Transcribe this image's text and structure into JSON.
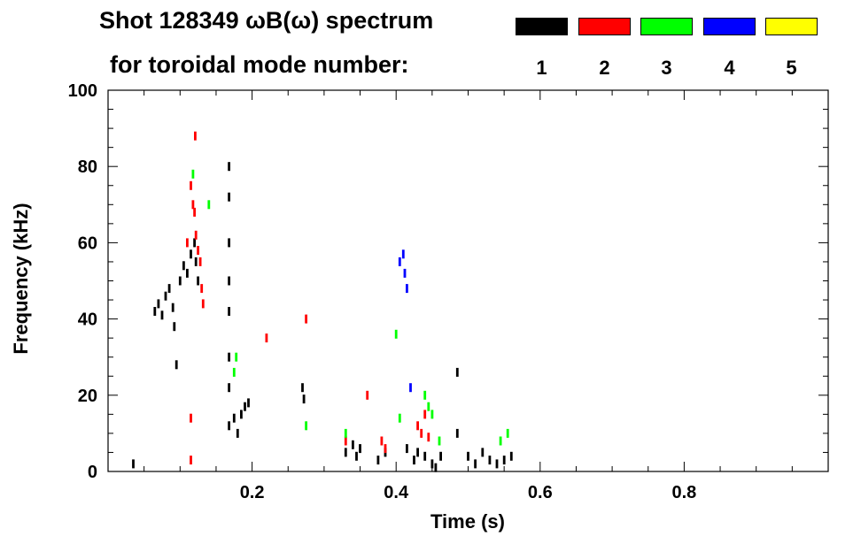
{
  "header": {
    "line1": "Shot 128349 ωB(ω) spectrum",
    "line2": "for toroidal mode number:"
  },
  "legend": [
    {
      "label": "1",
      "color": "#000000"
    },
    {
      "label": "2",
      "color": "#ff0000"
    },
    {
      "label": "3",
      "color": "#00ff00"
    },
    {
      "label": "4",
      "color": "#0000ff"
    },
    {
      "label": "5",
      "color": "#ffff00"
    }
  ],
  "chart_data": {
    "type": "scatter",
    "title": "Shot 128349 ωB(ω) spectrum",
    "xlabel": "Time (s)",
    "ylabel": "Frequency (kHz)",
    "xlim": [
      0.0,
      1.0
    ],
    "ylim": [
      0,
      100
    ],
    "xticks": [
      {
        "value": 0.2,
        "label": "0.2"
      },
      {
        "value": 0.4,
        "label": "0.4"
      },
      {
        "value": 0.6,
        "label": "0.6"
      },
      {
        "value": 0.8,
        "label": "0.8"
      }
    ],
    "yticks": [
      {
        "value": 0,
        "label": "0"
      },
      {
        "value": 20,
        "label": "20"
      },
      {
        "value": 40,
        "label": "40"
      },
      {
        "value": 60,
        "label": "60"
      },
      {
        "value": 80,
        "label": "80"
      },
      {
        "value": 100,
        "label": "100"
      }
    ],
    "series": [
      {
        "name": "1",
        "color": "#000000",
        "points": [
          [
            0.035,
            2
          ],
          [
            0.065,
            42
          ],
          [
            0.07,
            44
          ],
          [
            0.075,
            41
          ],
          [
            0.08,
            46
          ],
          [
            0.085,
            48
          ],
          [
            0.09,
            43
          ],
          [
            0.092,
            38
          ],
          [
            0.095,
            28
          ],
          [
            0.1,
            50
          ],
          [
            0.105,
            54
          ],
          [
            0.11,
            52
          ],
          [
            0.115,
            57
          ],
          [
            0.12,
            60
          ],
          [
            0.122,
            55
          ],
          [
            0.125,
            50
          ],
          [
            0.168,
            80
          ],
          [
            0.168,
            72
          ],
          [
            0.168,
            60
          ],
          [
            0.168,
            50
          ],
          [
            0.168,
            42
          ],
          [
            0.168,
            30
          ],
          [
            0.168,
            22
          ],
          [
            0.168,
            12
          ],
          [
            0.175,
            14
          ],
          [
            0.18,
            10
          ],
          [
            0.185,
            15
          ],
          [
            0.19,
            17
          ],
          [
            0.195,
            18
          ],
          [
            0.27,
            22
          ],
          [
            0.272,
            19
          ],
          [
            0.33,
            5
          ],
          [
            0.34,
            7
          ],
          [
            0.345,
            4
          ],
          [
            0.35,
            6
          ],
          [
            0.375,
            3
          ],
          [
            0.385,
            5
          ],
          [
            0.415,
            6
          ],
          [
            0.425,
            3
          ],
          [
            0.43,
            5
          ],
          [
            0.44,
            4
          ],
          [
            0.45,
            2
          ],
          [
            0.455,
            1
          ],
          [
            0.462,
            4
          ],
          [
            0.485,
            10
          ],
          [
            0.485,
            26
          ],
          [
            0.5,
            4
          ],
          [
            0.51,
            2
          ],
          [
            0.52,
            5
          ],
          [
            0.53,
            3
          ],
          [
            0.54,
            2
          ],
          [
            0.55,
            3
          ],
          [
            0.56,
            4
          ]
        ]
      },
      {
        "name": "2",
        "color": "#ff0000",
        "points": [
          [
            0.115,
            75
          ],
          [
            0.118,
            70
          ],
          [
            0.12,
            68
          ],
          [
            0.122,
            62
          ],
          [
            0.125,
            58
          ],
          [
            0.128,
            55
          ],
          [
            0.13,
            48
          ],
          [
            0.132,
            44
          ],
          [
            0.121,
            88
          ],
          [
            0.11,
            60
          ],
          [
            0.115,
            14
          ],
          [
            0.115,
            3
          ],
          [
            0.22,
            35
          ],
          [
            0.275,
            40
          ],
          [
            0.33,
            8
          ],
          [
            0.36,
            20
          ],
          [
            0.38,
            8
          ],
          [
            0.385,
            6
          ],
          [
            0.43,
            12
          ],
          [
            0.435,
            10
          ],
          [
            0.44,
            15
          ],
          [
            0.445,
            9
          ]
        ]
      },
      {
        "name": "3",
        "color": "#00ff00",
        "points": [
          [
            0.118,
            78
          ],
          [
            0.14,
            70
          ],
          [
            0.178,
            30
          ],
          [
            0.175,
            26
          ],
          [
            0.275,
            12
          ],
          [
            0.33,
            10
          ],
          [
            0.4,
            36
          ],
          [
            0.405,
            14
          ],
          [
            0.44,
            20
          ],
          [
            0.445,
            17
          ],
          [
            0.45,
            15
          ],
          [
            0.46,
            8
          ],
          [
            0.545,
            8
          ],
          [
            0.555,
            10
          ]
        ]
      },
      {
        "name": "4",
        "color": "#0000ff",
        "points": [
          [
            0.405,
            55
          ],
          [
            0.41,
            57
          ],
          [
            0.412,
            52
          ],
          [
            0.415,
            48
          ],
          [
            0.42,
            22
          ]
        ]
      },
      {
        "name": "5",
        "color": "#ffff00",
        "points": []
      }
    ]
  }
}
